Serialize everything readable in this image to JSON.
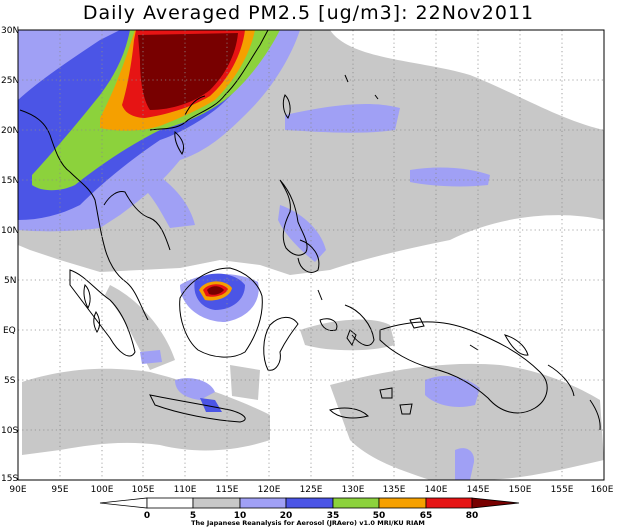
{
  "title": "Daily Averaged PM2.5 [ug/m3]: 22Nov2011",
  "lat_labels": [
    "30N",
    "25N",
    "20N",
    "15N",
    "10N",
    "5N",
    "EQ",
    "5S",
    "10S",
    "15S"
  ],
  "lon_labels": [
    "90E",
    "95E",
    "100E",
    "105E",
    "110E",
    "115E",
    "120E",
    "125E",
    "130E",
    "135E",
    "140E",
    "145E",
    "150E",
    "155E",
    "160E"
  ],
  "colorbar": {
    "levels": [
      "0",
      "5",
      "10",
      "20",
      "35",
      "50",
      "65",
      "80"
    ],
    "colors": [
      "#ffffff",
      "#c8c8c8",
      "#a0a0f5",
      "#4b55e6",
      "#8cd23c",
      "#f5a000",
      "#e61414",
      "#780000"
    ]
  },
  "credit": "The Japanese Reanalysis for Aerosol (JRAero) v1.0 MRI/KU RIAM",
  "map": {
    "extent": {
      "lon": [
        90,
        160
      ],
      "lat": [
        -15,
        30
      ]
    },
    "grid": "dotted 5-degree"
  }
}
